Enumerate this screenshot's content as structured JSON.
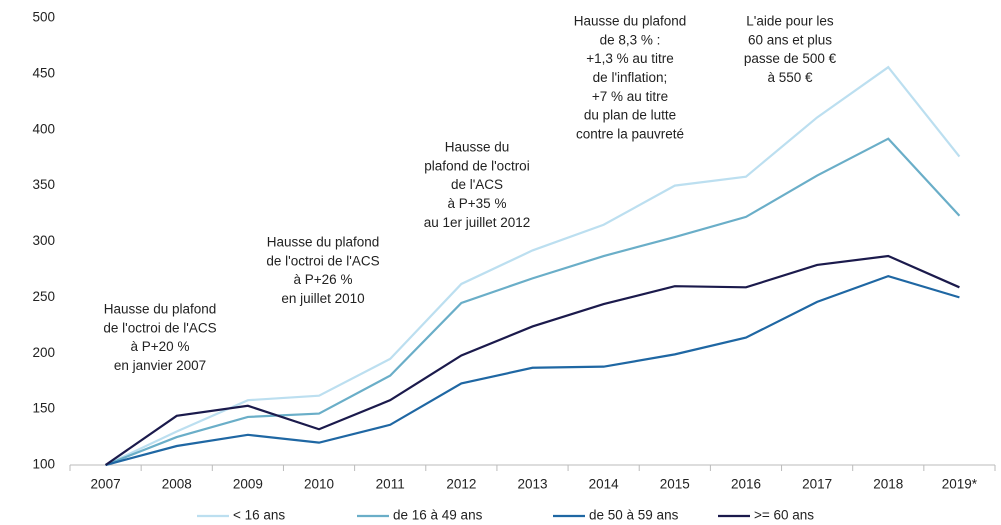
{
  "chart_data": {
    "type": "line",
    "categories": [
      "2007",
      "2008",
      "2009",
      "2010",
      "2011",
      "2012",
      "2013",
      "2014",
      "2015",
      "2016",
      "2017",
      "2018",
      "2019*"
    ],
    "series": [
      {
        "name": "< 16 ans",
        "color": "#bcdff0",
        "values": [
          100,
          130,
          158,
          162,
          195,
          262,
          292,
          315,
          350,
          358,
          411,
          456,
          376
        ]
      },
      {
        "name": "de 16 à 49 ans",
        "color": "#6aaec8",
        "values": [
          100,
          125,
          143,
          146,
          180,
          245,
          267,
          287,
          304,
          322,
          359,
          392,
          323
        ]
      },
      {
        "name": "de 50 à 59 ans",
        "color": "#1f67a3",
        "values": [
          100,
          117,
          127,
          120,
          136,
          173,
          187,
          188,
          199,
          214,
          246,
          269,
          250
        ]
      },
      {
        "name": ">= 60 ans",
        "color": "#1b1a4c",
        "values": [
          100,
          144,
          153,
          132,
          158,
          198,
          224,
          244,
          260,
          259,
          279,
          287,
          259
        ]
      }
    ],
    "ylim": [
      100,
      500
    ],
    "yticks": [
      100,
      150,
      200,
      250,
      300,
      350,
      400,
      450,
      500
    ],
    "legend": "bottom",
    "annotations": [
      [
        "Hausse du plafond",
        "de l'octroi de l'ACS",
        "à P+20 %",
        "en janvier 2007"
      ],
      [
        "Hausse du plafond",
        "de l'octroi de l'ACS",
        "à P+26 %",
        "en juillet 2010"
      ],
      [
        "Hausse du",
        "plafond de l'octroi",
        "de l'ACS",
        "à P+35 %",
        "au 1er juillet 2012"
      ],
      [
        "Hausse du plafond",
        "de 8,3 % :",
        "+1,3 % au titre",
        "de l'inflation;",
        "+7 % au titre",
        "du plan de lutte",
        "contre la pauvreté"
      ],
      [
        "L'aide pour les",
        "60 ans et plus",
        "passe de 500 €",
        "à 550 €"
      ]
    ]
  }
}
